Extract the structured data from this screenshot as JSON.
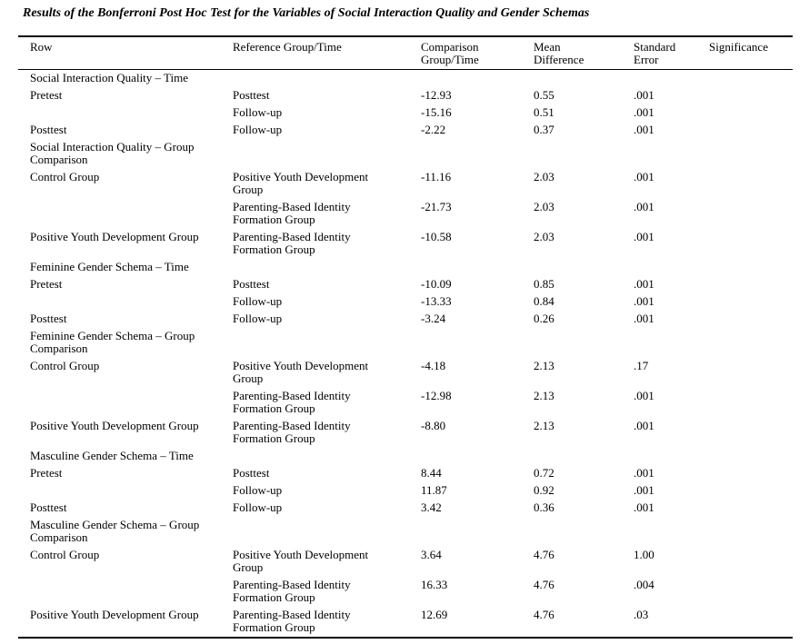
{
  "title": "Results of the Bonferroni Post Hoc Test for the Variables of Social Interaction Quality and Gender Schemas",
  "table": {
    "columns": [
      "Row",
      "Reference Group/Time",
      "Comparison\nGroup/Time",
      "Mean\nDifference",
      "Standard\nError",
      "Significance"
    ],
    "rows": [
      {
        "type": "section",
        "label": "Social Interaction Quality – Time"
      },
      {
        "type": "data",
        "cells": [
          "Pretest",
          "Posttest",
          "-12.93",
          "0.55",
          ".001",
          ""
        ]
      },
      {
        "type": "data",
        "cells": [
          "",
          "Follow-up",
          "-15.16",
          "0.51",
          ".001",
          ""
        ]
      },
      {
        "type": "data",
        "cells": [
          "Posttest",
          "Follow-up",
          "-2.22",
          "0.37",
          ".001",
          ""
        ]
      },
      {
        "type": "section",
        "label": "Social Interaction Quality – Group Comparison"
      },
      {
        "type": "data",
        "cells": [
          "Control Group",
          "Positive Youth Development Group",
          "-11.16",
          "2.03",
          ".001",
          ""
        ]
      },
      {
        "type": "data",
        "cells": [
          "",
          "Parenting-Based Identity Formation Group",
          "-21.73",
          "2.03",
          ".001",
          ""
        ]
      },
      {
        "type": "data",
        "cells": [
          "Positive Youth Development Group",
          "Parenting-Based Identity Formation Group",
          "-10.58",
          "2.03",
          ".001",
          ""
        ]
      },
      {
        "type": "section",
        "label": "Feminine Gender Schema – Time"
      },
      {
        "type": "data",
        "cells": [
          "Pretest",
          "Posttest",
          "-10.09",
          "0.85",
          ".001",
          ""
        ]
      },
      {
        "type": "data",
        "cells": [
          "",
          "Follow-up",
          "-13.33",
          "0.84",
          ".001",
          ""
        ]
      },
      {
        "type": "data",
        "cells": [
          "Posttest",
          "Follow-up",
          "-3.24",
          "0.26",
          ".001",
          ""
        ]
      },
      {
        "type": "section",
        "label": "Feminine Gender Schema – Group Comparison"
      },
      {
        "type": "data",
        "cells": [
          "Control Group",
          "Positive Youth Development Group",
          "-4.18",
          "2.13",
          ".17",
          ""
        ]
      },
      {
        "type": "data",
        "cells": [
          "",
          "Parenting-Based Identity Formation Group",
          "-12.98",
          "2.13",
          ".001",
          ""
        ]
      },
      {
        "type": "data",
        "cells": [
          "Positive Youth Development Group",
          "Parenting-Based Identity Formation Group",
          "-8.80",
          "2.13",
          ".001",
          ""
        ]
      },
      {
        "type": "section",
        "label": "Masculine Gender Schema – Time"
      },
      {
        "type": "data",
        "cells": [
          "Pretest",
          "Posttest",
          "8.44",
          "0.72",
          ".001",
          ""
        ]
      },
      {
        "type": "data",
        "cells": [
          "",
          "Follow-up",
          "11.87",
          "0.92",
          ".001",
          ""
        ]
      },
      {
        "type": "data",
        "cells": [
          "Posttest",
          "Follow-up",
          "3.42",
          "0.36",
          ".001",
          ""
        ]
      },
      {
        "type": "section",
        "label": "Masculine Gender Schema – Group Comparison"
      },
      {
        "type": "data",
        "cells": [
          "Control Group",
          "Positive Youth Development Group",
          "3.64",
          "4.76",
          "1.00",
          ""
        ]
      },
      {
        "type": "data",
        "cells": [
          "",
          "Parenting-Based Identity Formation Group",
          "16.33",
          "4.76",
          ".004",
          ""
        ]
      },
      {
        "type": "data",
        "cells": [
          "Positive Youth Development Group",
          "Parenting-Based Identity Formation Group",
          "12.69",
          "4.76",
          ".03",
          ""
        ]
      }
    ]
  }
}
